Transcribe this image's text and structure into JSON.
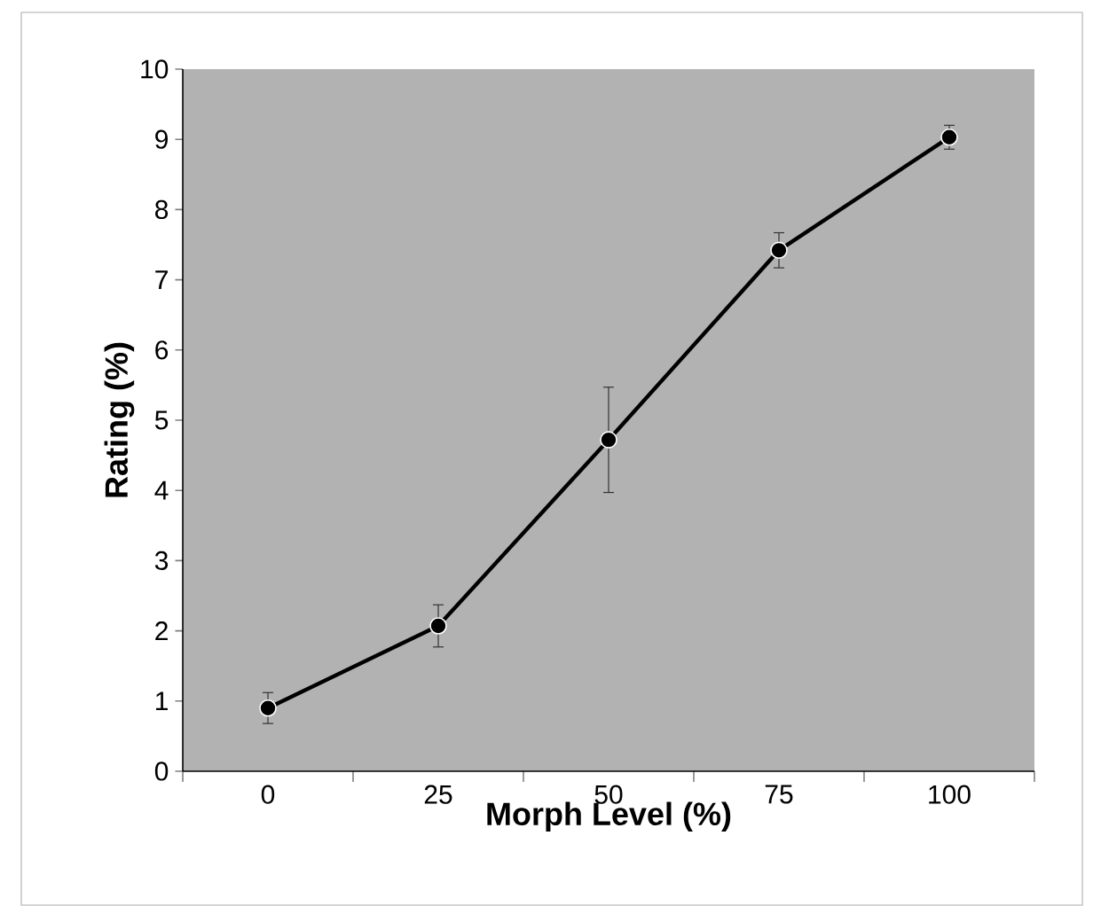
{
  "chart_data": {
    "type": "line",
    "xlabel": "Morph Level (%)",
    "ylabel": "Rating (%)",
    "categories": [
      "0",
      "25",
      "50",
      "75",
      "100"
    ],
    "series": [
      {
        "color": "#000000",
        "values": [
          0.9,
          2.07,
          4.72,
          7.42,
          9.03
        ],
        "errors": [
          0.22,
          0.3,
          0.75,
          0.25,
          0.17
        ]
      }
    ],
    "ylim": [
      0,
      10
    ],
    "yticks": [
      0,
      1,
      2,
      3,
      4,
      5,
      6,
      7,
      8,
      9,
      10
    ],
    "grid": false,
    "marker": "circle",
    "line_style": "solid"
  }
}
